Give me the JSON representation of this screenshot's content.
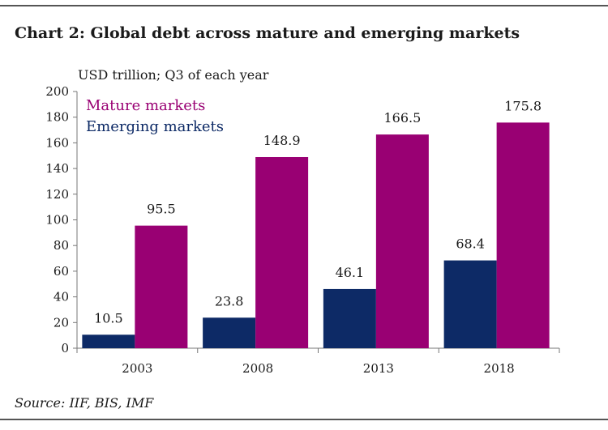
{
  "title": "Chart 2: Global debt across mature and emerging markets",
  "unit_label": "USD trillion; Q3 of each year",
  "source": "Source:  IIF, BIS, IMF",
  "colors": {
    "mature": "#990073",
    "emerging": "#0d2a66",
    "axis": "#777777",
    "rule": "#555555"
  },
  "chart_data": {
    "type": "bar",
    "categories": [
      "2003",
      "2008",
      "2013",
      "2018"
    ],
    "series": [
      {
        "name": "Emerging markets",
        "values": [
          10.5,
          23.8,
          46.1,
          68.4
        ],
        "color": "#0d2a66"
      },
      {
        "name": "Mature markets",
        "values": [
          95.5,
          148.9,
          166.5,
          175.8
        ],
        "color": "#990073"
      }
    ],
    "data_labels": {
      "Emerging markets": [
        "10.5",
        "23.8",
        "46.1",
        "68.4"
      ],
      "Mature markets": [
        "95.5",
        "148.9",
        "166.5",
        "175.8"
      ]
    },
    "ylim": [
      0,
      200
    ],
    "yticks": [
      0,
      20,
      40,
      60,
      80,
      100,
      120,
      140,
      160,
      180,
      200
    ],
    "ytick_labels": [
      "0",
      "20",
      "40",
      "60",
      "80",
      "100",
      "120",
      "140",
      "160",
      "180",
      "200"
    ],
    "legend": [
      "Mature markets",
      "Emerging markets"
    ],
    "legend_position": "top-left",
    "grid": false
  }
}
